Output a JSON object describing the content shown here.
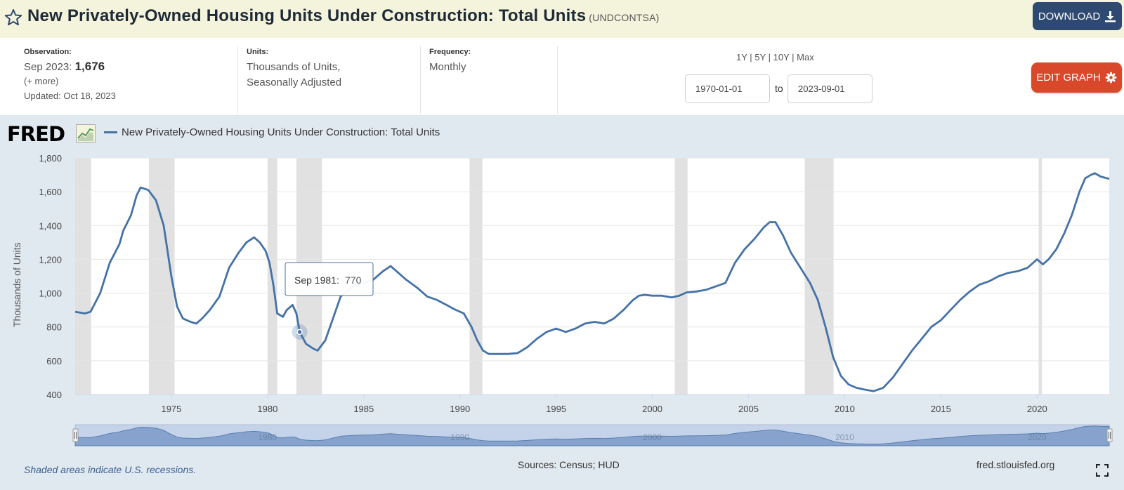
{
  "header": {
    "title": "New Privately-Owned Housing Units Under Construction: Total Units",
    "series_id": "(UNDCONTSA)",
    "download_label": "DOWNLOAD"
  },
  "info": {
    "observation_label": "Observation:",
    "observation_date": "Sep 2023:",
    "observation_value": "1,676",
    "more_link": "(+ more)",
    "updated": "Updated: Oct 18, 2023",
    "units_label": "Units:",
    "units_line1": "Thousands of Units,",
    "units_line2": "Seasonally Adjusted",
    "frequency_label": "Frequency:",
    "frequency_value": "Monthly"
  },
  "controls": {
    "range_1y": "1Y",
    "range_5y": "5Y",
    "range_10y": "10Y",
    "range_max": "Max",
    "range_sep": "|",
    "start_date": "1970-01-01",
    "to_label": "to",
    "end_date": "2023-09-01",
    "edit_label": "EDIT GRAPH"
  },
  "logo": "FRED",
  "legend_label": "New Privately-Owned Housing Units Under Construction: Total Units",
  "tooltip": {
    "date": "Sep 1981:",
    "value": "770"
  },
  "footer": {
    "recession_note": "Shaded areas indicate U.S. recessions.",
    "sources": "Sources: Census; HUD",
    "url": "fred.stlouisfed.org"
  },
  "colors": {
    "series": "#4572a7",
    "recession": "#e1e1e1",
    "background": "#e1e9f0"
  },
  "icons": {
    "star": "star-icon",
    "download": "download-icon",
    "edit": "gear-icon",
    "fullscreen": "fullscreen-icon"
  },
  "chart_data": {
    "type": "line",
    "title": "",
    "xlabel": "",
    "ylabel": "Thousands of Units",
    "xlim": [
      1970.0,
      2023.75
    ],
    "ylim": [
      400,
      1800
    ],
    "y_ticks": [
      400,
      600,
      800,
      1000,
      1200,
      1400,
      1600,
      1800
    ],
    "y_tick_labels": [
      "400",
      "600",
      "800",
      "1,000",
      "1,200",
      "1,400",
      "1,600",
      "1,800"
    ],
    "x_ticks": [
      1975,
      1980,
      1985,
      1990,
      1995,
      2000,
      2005,
      2010,
      2015,
      2020
    ],
    "x_tick_labels": [
      "1975",
      "1980",
      "1985",
      "1990",
      "1995",
      "2000",
      "2005",
      "2010",
      "2015",
      "2020"
    ],
    "navigator_labels": [
      "1980",
      "1990",
      "2000",
      "2010",
      "2020"
    ],
    "grid": true,
    "legend": "top-left",
    "recessions": [
      [
        1969.92,
        1970.83
      ],
      [
        1973.83,
        1975.17
      ],
      [
        1980.0,
        1980.5
      ],
      [
        1981.5,
        1982.83
      ],
      [
        1990.5,
        1991.17
      ],
      [
        2001.17,
        2001.83
      ],
      [
        2007.92,
        2009.42
      ],
      [
        2020.08,
        2020.25
      ]
    ],
    "tooltip_point": {
      "x": 1981.67,
      "y": 770
    },
    "series": [
      {
        "name": "New Privately-Owned Housing Units Under Construction: Total Units",
        "points": [
          [
            1970.0,
            890
          ],
          [
            1970.5,
            880
          ],
          [
            1970.8,
            890
          ],
          [
            1971.3,
            1000
          ],
          [
            1971.8,
            1180
          ],
          [
            1972.3,
            1290
          ],
          [
            1972.5,
            1370
          ],
          [
            1972.9,
            1460
          ],
          [
            1973.2,
            1580
          ],
          [
            1973.4,
            1625
          ],
          [
            1973.8,
            1610
          ],
          [
            1974.2,
            1550
          ],
          [
            1974.6,
            1400
          ],
          [
            1975.0,
            1100
          ],
          [
            1975.3,
            920
          ],
          [
            1975.6,
            850
          ],
          [
            1976.0,
            830
          ],
          [
            1976.3,
            820
          ],
          [
            1976.6,
            850
          ],
          [
            1977.0,
            900
          ],
          [
            1977.5,
            980
          ],
          [
            1978.0,
            1150
          ],
          [
            1978.5,
            1240
          ],
          [
            1978.9,
            1300
          ],
          [
            1979.3,
            1330
          ],
          [
            1979.6,
            1300
          ],
          [
            1979.9,
            1250
          ],
          [
            1980.1,
            1180
          ],
          [
            1980.3,
            1050
          ],
          [
            1980.5,
            880
          ],
          [
            1980.8,
            860
          ],
          [
            1981.0,
            900
          ],
          [
            1981.3,
            930
          ],
          [
            1981.5,
            880
          ],
          [
            1981.67,
            770
          ],
          [
            1982.0,
            700
          ],
          [
            1982.4,
            670
          ],
          [
            1982.6,
            660
          ],
          [
            1983.0,
            720
          ],
          [
            1983.4,
            850
          ],
          [
            1983.8,
            980
          ],
          [
            1984.2,
            1020
          ],
          [
            1984.6,
            1050
          ],
          [
            1985.0,
            1060
          ],
          [
            1985.5,
            1080
          ],
          [
            1986.0,
            1130
          ],
          [
            1986.4,
            1160
          ],
          [
            1986.8,
            1120
          ],
          [
            1987.2,
            1080
          ],
          [
            1987.8,
            1030
          ],
          [
            1988.3,
            980
          ],
          [
            1988.8,
            960
          ],
          [
            1989.3,
            930
          ],
          [
            1989.7,
            905
          ],
          [
            1990.2,
            880
          ],
          [
            1990.6,
            800
          ],
          [
            1990.9,
            720
          ],
          [
            1991.2,
            660
          ],
          [
            1991.5,
            640
          ],
          [
            1992.0,
            640
          ],
          [
            1992.5,
            640
          ],
          [
            1993.0,
            645
          ],
          [
            1993.5,
            680
          ],
          [
            1994.0,
            730
          ],
          [
            1994.5,
            770
          ],
          [
            1995.0,
            790
          ],
          [
            1995.5,
            770
          ],
          [
            1996.0,
            790
          ],
          [
            1996.5,
            820
          ],
          [
            1997.0,
            830
          ],
          [
            1997.5,
            820
          ],
          [
            1998.0,
            850
          ],
          [
            1998.5,
            900
          ],
          [
            1999.0,
            960
          ],
          [
            1999.3,
            985
          ],
          [
            1999.6,
            990
          ],
          [
            2000.0,
            985
          ],
          [
            2000.5,
            985
          ],
          [
            2001.0,
            975
          ],
          [
            2001.4,
            985
          ],
          [
            2001.8,
            1005
          ],
          [
            2002.3,
            1010
          ],
          [
            2002.8,
            1020
          ],
          [
            2003.3,
            1040
          ],
          [
            2003.8,
            1060
          ],
          [
            2004.3,
            1180
          ],
          [
            2004.8,
            1260
          ],
          [
            2005.3,
            1320
          ],
          [
            2005.8,
            1390
          ],
          [
            2006.1,
            1420
          ],
          [
            2006.4,
            1420
          ],
          [
            2006.8,
            1340
          ],
          [
            2007.2,
            1240
          ],
          [
            2007.7,
            1150
          ],
          [
            2008.2,
            1060
          ],
          [
            2008.6,
            960
          ],
          [
            2009.0,
            800
          ],
          [
            2009.4,
            620
          ],
          [
            2009.8,
            510
          ],
          [
            2010.2,
            460
          ],
          [
            2010.6,
            440
          ],
          [
            2011.0,
            430
          ],
          [
            2011.5,
            420
          ],
          [
            2012.0,
            440
          ],
          [
            2012.5,
            500
          ],
          [
            2013.0,
            580
          ],
          [
            2013.5,
            660
          ],
          [
            2014.0,
            730
          ],
          [
            2014.5,
            800
          ],
          [
            2015.0,
            840
          ],
          [
            2015.5,
            900
          ],
          [
            2016.0,
            960
          ],
          [
            2016.5,
            1010
          ],
          [
            2017.0,
            1050
          ],
          [
            2017.5,
            1070
          ],
          [
            2018.0,
            1100
          ],
          [
            2018.5,
            1120
          ],
          [
            2019.0,
            1130
          ],
          [
            2019.5,
            1150
          ],
          [
            2020.0,
            1200
          ],
          [
            2020.3,
            1170
          ],
          [
            2020.6,
            1200
          ],
          [
            2021.0,
            1260
          ],
          [
            2021.4,
            1350
          ],
          [
            2021.8,
            1460
          ],
          [
            2022.2,
            1600
          ],
          [
            2022.5,
            1680
          ],
          [
            2022.8,
            1700
          ],
          [
            2023.0,
            1710
          ],
          [
            2023.3,
            1690
          ],
          [
            2023.75,
            1676
          ]
        ]
      }
    ]
  }
}
